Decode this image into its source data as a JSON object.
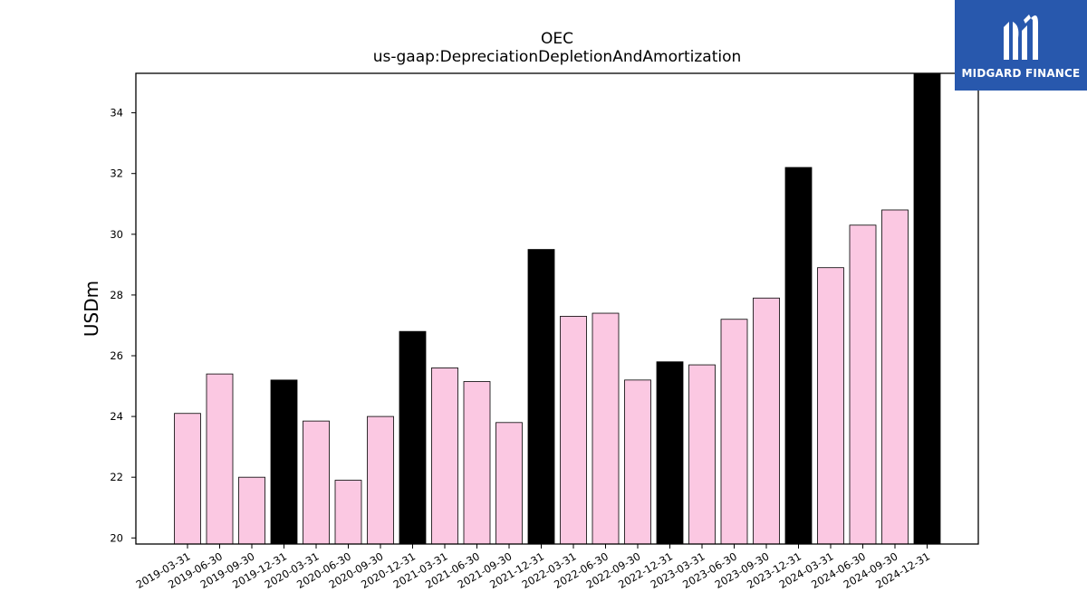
{
  "brand": {
    "name": "MIDGARD FINANCE",
    "logo_icon": "midgard-finance-logo-icon",
    "background": "#2858ad"
  },
  "chart_data": {
    "type": "bar",
    "title": "OEC",
    "subtitle": "us-gaap:DepreciationDepletionAndAmortization",
    "xlabel": "",
    "ylabel": "USDm",
    "ylim": [
      19.8,
      35.3
    ],
    "yticks": [
      20,
      22,
      24,
      26,
      28,
      30,
      32,
      34
    ],
    "grid": false,
    "categories": [
      "2019-03-31",
      "2019-06-30",
      "2019-09-30",
      "2019-12-31",
      "2020-03-31",
      "2020-06-30",
      "2020-09-30",
      "2020-12-31",
      "2021-03-31",
      "2021-06-30",
      "2021-09-30",
      "2021-12-31",
      "2022-03-31",
      "2022-06-30",
      "2022-09-30",
      "2022-12-31",
      "2023-03-31",
      "2023-06-30",
      "2023-09-30",
      "2023-12-31",
      "2024-03-31",
      "2024-06-30",
      "2024-09-30",
      "2024-12-31"
    ],
    "values": [
      24.1,
      25.4,
      22.0,
      25.2,
      23.85,
      21.9,
      24.0,
      26.8,
      25.6,
      25.15,
      23.8,
      29.5,
      27.3,
      27.4,
      25.2,
      25.8,
      25.7,
      27.2,
      27.9,
      32.2,
      28.9,
      30.3,
      30.8,
      35.3
    ],
    "bar_colors": {
      "quarter": "#fbc8e2",
      "year_end": "#000000",
      "edge": "#000000"
    }
  }
}
